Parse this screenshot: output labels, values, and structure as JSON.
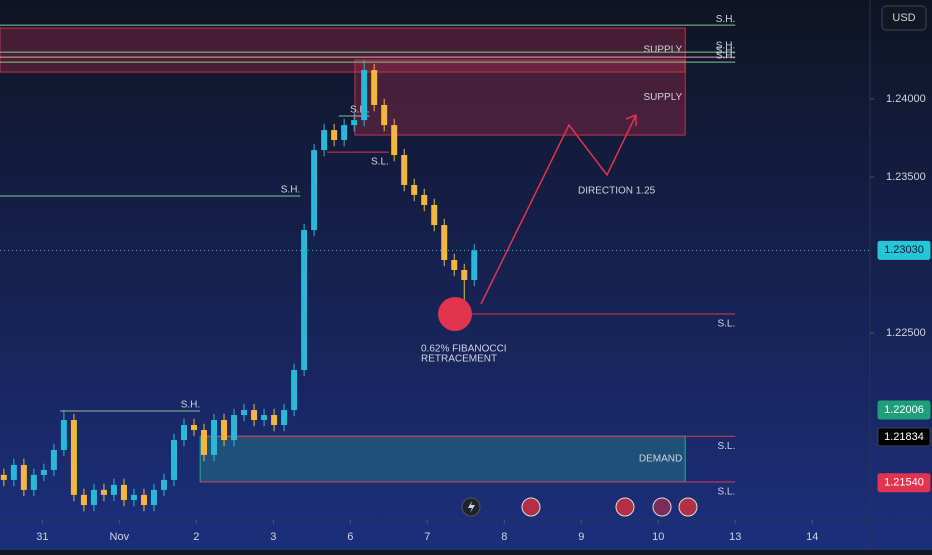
{
  "chart_data": {
    "type": "candlestick",
    "currency": "USD",
    "xlim": [
      -0.55,
      10.75
    ],
    "ylim": [
      1.21301,
      1.24635
    ],
    "xticks": [
      {
        "value": 0,
        "label": "31"
      },
      {
        "value": 1,
        "label": "Nov"
      },
      2,
      3,
      {
        "value": 4,
        "label": "6"
      },
      {
        "value": 5,
        "label": "7"
      },
      {
        "value": 6,
        "label": "8"
      },
      {
        "value": 7,
        "label": "9"
      },
      {
        "value": 8,
        "label": "10"
      },
      {
        "value": 9,
        "label": "13"
      },
      {
        "value": 10,
        "label": "14"
      }
    ],
    "yticks": [
      {
        "value": 1.24,
        "label": "1.24000"
      },
      {
        "value": 1.235,
        "label": "1.23500"
      },
      {
        "value": 1.225,
        "label": "1.22500"
      }
    ],
    "up_color": "#2bb8d8",
    "down_color": "#f3b63f",
    "x": [
      -0.5,
      -0.37,
      -0.24,
      -0.11,
      0.02,
      0.15,
      0.28,
      0.41,
      0.54,
      0.67,
      0.8,
      0.93,
      1.06,
      1.19,
      1.32,
      1.45,
      1.58,
      1.71,
      1.84,
      1.97,
      2.1,
      2.23,
      2.36,
      2.49,
      2.62,
      2.75,
      2.88,
      3.01,
      3.14,
      3.27,
      3.4,
      3.53,
      3.66,
      3.79,
      3.92,
      4.05,
      4.18,
      4.31,
      4.44,
      4.57,
      4.7,
      4.83,
      4.96,
      5.09,
      5.22,
      5.35,
      5.48,
      5.61
    ],
    "open": [
      1.2159,
      1.21558,
      1.21654,
      1.21494,
      1.2159,
      1.21622,
      1.2175,
      1.21942,
      1.21462,
      1.21397,
      1.21494,
      1.21462,
      1.21526,
      1.21429,
      1.21462,
      1.21397,
      1.21494,
      1.21558,
      1.21814,
      1.2191,
      1.21878,
      1.21718,
      1.21942,
      1.21814,
      1.21974,
      1.22006,
      1.21942,
      1.21974,
      1.2191,
      1.22006,
      1.22263,
      1.2316,
      1.23673,
      1.23801,
      1.23737,
      1.23833,
      1.23865,
      1.24186,
      1.23962,
      1.23833,
      1.23641,
      1.23449,
      1.23385,
      1.23321,
      1.23192,
      1.22968,
      1.22904,
      1.2284
    ],
    "high": [
      1.2163,
      1.21694,
      1.21694,
      1.2163,
      1.21662,
      1.2179,
      1.22006,
      1.21982,
      1.21502,
      1.21534,
      1.21534,
      1.21566,
      1.21566,
      1.21502,
      1.21502,
      1.21534,
      1.21598,
      1.21854,
      1.2195,
      1.2195,
      1.21918,
      1.21982,
      1.21982,
      1.22014,
      1.22046,
      1.22046,
      1.22014,
      1.22014,
      1.22046,
      1.22303,
      1.232,
      1.23713,
      1.23841,
      1.23841,
      1.23873,
      1.23905,
      1.2425,
      1.24226,
      1.24002,
      1.23873,
      1.23681,
      1.23489,
      1.23425,
      1.23361,
      1.23232,
      1.23008,
      1.22944,
      1.2307
    ],
    "low": [
      1.21518,
      1.21518,
      1.21454,
      1.21454,
      1.2155,
      1.21582,
      1.2171,
      1.21422,
      1.21357,
      1.21357,
      1.21422,
      1.21422,
      1.21389,
      1.21389,
      1.21357,
      1.21357,
      1.21454,
      1.21518,
      1.21774,
      1.21838,
      1.21678,
      1.21678,
      1.21774,
      1.21774,
      1.21934,
      1.21902,
      1.21902,
      1.2187,
      1.2187,
      1.21966,
      1.22223,
      1.2312,
      1.23633,
      1.23697,
      1.23697,
      1.23793,
      1.23825,
      1.23922,
      1.23793,
      1.23601,
      1.23409,
      1.23345,
      1.23281,
      1.23152,
      1.22928,
      1.22864,
      1.227,
      1.228
    ],
    "close": [
      1.21558,
      1.21654,
      1.21494,
      1.2159,
      1.21622,
      1.2175,
      1.21942,
      1.21462,
      1.21397,
      1.21494,
      1.21462,
      1.21526,
      1.21429,
      1.21462,
      1.21397,
      1.21494,
      1.21558,
      1.21814,
      1.2191,
      1.21878,
      1.21718,
      1.21942,
      1.21814,
      1.21974,
      1.22006,
      1.21942,
      1.21974,
      1.2191,
      1.22006,
      1.22263,
      1.2316,
      1.23673,
      1.23801,
      1.23737,
      1.23833,
      1.23865,
      1.24186,
      1.23962,
      1.23833,
      1.23641,
      1.23449,
      1.23385,
      1.23321,
      1.23192,
      1.22968,
      1.22904,
      1.2284,
      1.2303
    ],
    "zones": [
      {
        "label": "SUPPLY",
        "top": 1.24455,
        "bottom": 1.24173,
        "x_from": -0.55,
        "x_to": 8.35,
        "color": "#c2334d"
      },
      {
        "label": "SUPPLY",
        "top": 1.2425,
        "bottom": 1.23769,
        "x_from": 4.06,
        "x_to": 8.35,
        "color": "#c2334d"
      },
      {
        "label": "DEMAND",
        "top": 1.21838,
        "bottom": 1.21545,
        "x_from": 2.05,
        "x_to": 8.35,
        "color": "#2aa89a"
      }
    ],
    "levels": [
      {
        "label": "S.H.",
        "price": 1.24474,
        "x_from": -0.55,
        "x_to": 9.0,
        "color": "#7fc98a"
      },
      {
        "label": "S.H.",
        "price": 1.24301,
        "x_from": -0.55,
        "x_to": 9.0,
        "color": "#7fc98a"
      },
      {
        "label": "S.H.",
        "price": 1.24269,
        "x_from": -0.55,
        "x_to": 9.0,
        "color": "#e8a0b0"
      },
      {
        "label": "S.H.",
        "price": 1.24237,
        "x_from": -0.55,
        "x_to": 9.0,
        "color": "#7fc98a"
      },
      {
        "label": "S.H.",
        "price": 1.23378,
        "x_from": -0.55,
        "x_to": 3.35,
        "color": "#7fc98a"
      },
      {
        "label": "S.H.",
        "price": 1.22,
        "x_from": 0.23,
        "x_to": 2.05,
        "color": "#7fc98a"
      },
      {
        "label": "S.H.",
        "price": 1.23891,
        "x_from": 3.85,
        "x_to": 4.25,
        "color": "#7fc98a"
      },
      {
        "label": "S.L.",
        "price": 1.2366,
        "x_from": 3.7,
        "x_to": 4.5,
        "color": "#e2344f"
      },
      {
        "label": "S.L.",
        "price": 1.22622,
        "x_from": 5.55,
        "x_to": 9.0,
        "color": "#e2344f"
      },
      {
        "label": "S.L.",
        "price": 1.21838,
        "x_from": 2.05,
        "x_to": 9.0,
        "color": "#e2344f"
      },
      {
        "label": "S.L.",
        "price": 1.21545,
        "x_from": 2.05,
        "x_to": 9.0,
        "color": "#e2344f"
      }
    ],
    "price_tags": [
      {
        "value": 1.2303,
        "label": "1.23030",
        "color": "#26c6da",
        "text_color": "#0b1b2b"
      },
      {
        "value": 1.22006,
        "label": "1.22006",
        "color": "#1f9e78",
        "text_color": "#ffffff"
      },
      {
        "value": 1.21834,
        "label": "1.21834",
        "color": "#000000",
        "text_color": "#ffffff"
      },
      {
        "value": 1.2154,
        "label": "1.21540",
        "color": "#e2344f",
        "text_color": "#ffffff"
      }
    ],
    "annotations": {
      "direction": "DIRECTION 1.25",
      "fibonacci": [
        "0.62% FIBANOCCI",
        "RETRACEMENT"
      ]
    }
  }
}
